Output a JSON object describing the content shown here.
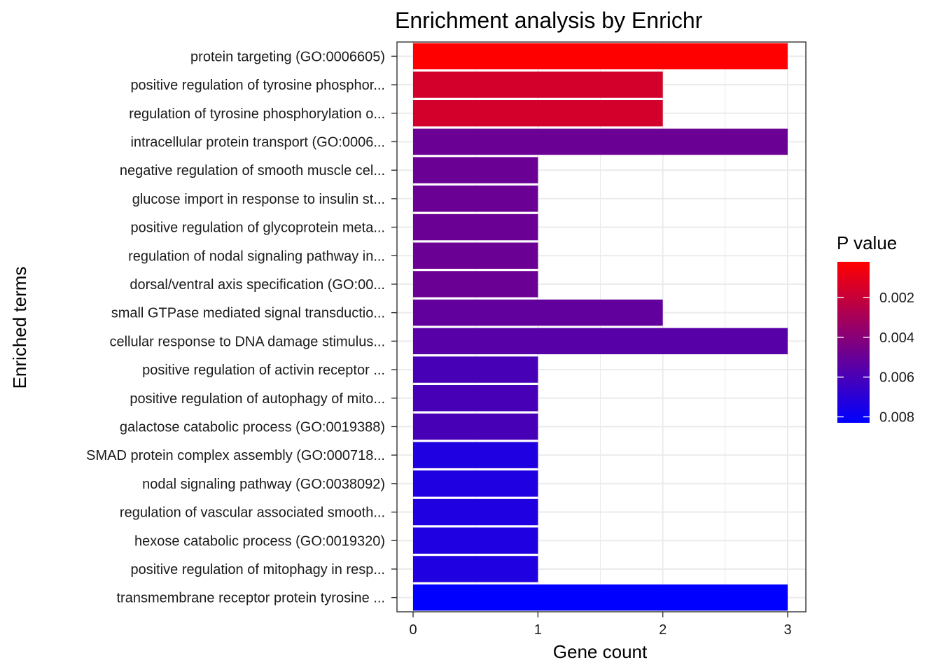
{
  "chart_data": {
    "type": "bar",
    "orientation": "horizontal",
    "title": "Enrichment analysis by Enrichr",
    "xlabel": "Gene count",
    "ylabel": "Enriched terms",
    "xlim": [
      0,
      3
    ],
    "x_ticks": [
      "0",
      "1",
      "2",
      "3"
    ],
    "grid": true,
    "categories": [
      "protein targeting (GO:0006605)",
      "positive regulation of tyrosine phosphor...",
      "regulation of tyrosine phosphorylation o...",
      "intracellular protein transport (GO:0006...",
      "negative regulation of smooth muscle cel...",
      "glucose import in response to insulin st...",
      "positive regulation of glycoprotein meta...",
      "regulation of nodal signaling pathway in...",
      "dorsal/ventral axis specification (GO:00...",
      "small GTPase mediated signal transductio...",
      "cellular response to DNA damage stimulus...",
      "positive regulation of activin receptor ...",
      "positive regulation of autophagy of mito...",
      "galactose catabolic process (GO:0019388)",
      "SMAD protein complex assembly (GO:000718...",
      "nodal signaling pathway (GO:0038092)",
      "regulation of vascular associated smooth...",
      "hexose catabolic process (GO:0019320)",
      "positive regulation of mitophagy in resp...",
      "transmembrane receptor protein tyrosine ..."
    ],
    "values": [
      3,
      2,
      2,
      3,
      1,
      1,
      1,
      1,
      1,
      2,
      3,
      1,
      1,
      1,
      1,
      1,
      1,
      1,
      1,
      3
    ],
    "p_values": [
      0.0002,
      0.0016,
      0.0016,
      0.0049,
      0.0049,
      0.0049,
      0.0049,
      0.0049,
      0.0049,
      0.0052,
      0.0055,
      0.006,
      0.006,
      0.006,
      0.0073,
      0.0073,
      0.0073,
      0.0073,
      0.0073,
      0.0083
    ],
    "legend": {
      "title": "P value",
      "placement": "right",
      "low_color": "#ff0000",
      "high_color": "#0000ff",
      "range": [
        0.0002,
        0.0083
      ],
      "ticks": [
        0.002,
        0.004,
        0.006,
        0.008
      ],
      "tick_labels": [
        "0.002",
        "0.004",
        "0.006",
        "0.008"
      ]
    }
  }
}
